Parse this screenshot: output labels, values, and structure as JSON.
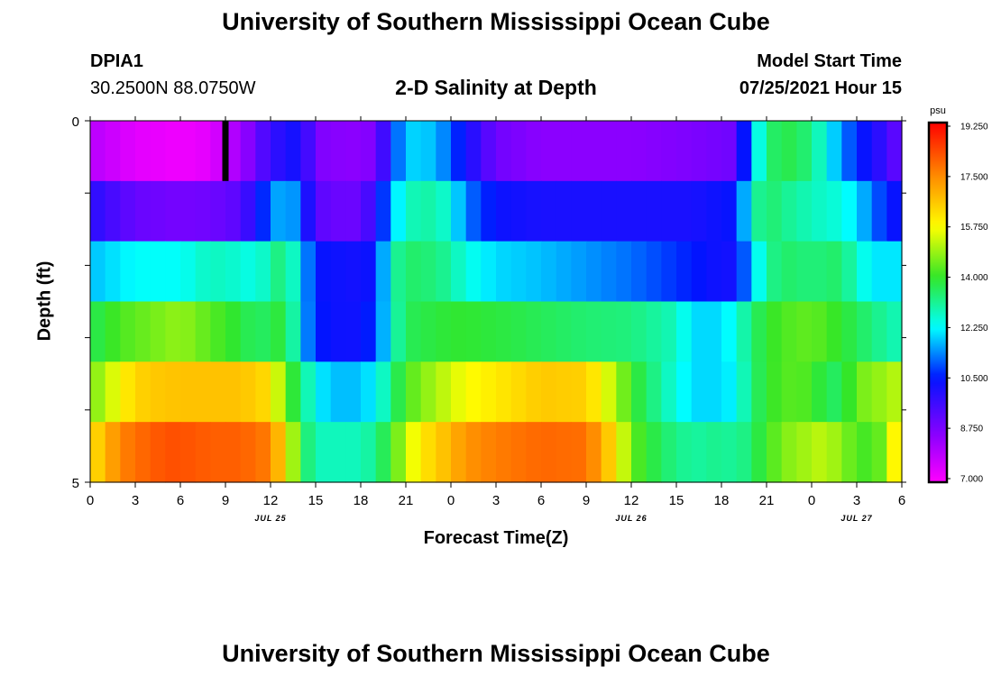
{
  "page": {
    "title": "University of Southern Mississippi Ocean Cube",
    "footer_title": "University of Southern Mississippi Ocean Cube",
    "station_id": "DPIA1",
    "coordinates": "30.2500N  88.0750W",
    "chart_title": "2-D Salinity at Depth",
    "model_start_label": "Model Start Time",
    "model_start_value": "07/25/2021 Hour 15"
  },
  "chart_data": {
    "type": "heatmap",
    "title": "2-D Salinity at Depth",
    "xlabel": "Forecast Time(Z)",
    "ylabel": "Depth (ft)",
    "x_tick_labels": [
      "0",
      "3",
      "6",
      "9",
      "12",
      "15",
      "18",
      "21",
      "0",
      "3",
      "6",
      "9",
      "12",
      "15",
      "18",
      "21",
      "0",
      "3",
      "6"
    ],
    "x_range_hours": [
      0,
      54
    ],
    "x_column_step_hours": 1,
    "date_labels": [
      {
        "text": "JUL 25",
        "hour": 12
      },
      {
        "text": "JUL 26",
        "hour": 36
      },
      {
        "text": "JUL 27",
        "hour": 51
      }
    ],
    "y_tick_labels": [
      "0",
      "5"
    ],
    "y_range": [
      0,
      5
    ],
    "y_minor_ticks": 5,
    "depth_layers": [
      "0-1",
      "1-2",
      "2-3",
      "3-4",
      "4-5"
    ],
    "grid": false,
    "colorbar": {
      "unit": "psu",
      "min": 7.0,
      "max": 19.25,
      "labels": [
        "19.250",
        "17.500",
        "15.750",
        "14.000",
        "12.250",
        "10.500",
        "8.750",
        "7.000"
      ]
    },
    "current_time_marker_hour": 9,
    "layer_key_values": [
      {
        "layer": 1,
        "hours": [
          0,
          3,
          6,
          8,
          10,
          11,
          12,
          14,
          15,
          17,
          18,
          19,
          20,
          21,
          23,
          24,
          25,
          27,
          30,
          33,
          36,
          40,
          43,
          43.5,
          44,
          45,
          46,
          48,
          49,
          50,
          51,
          52,
          53,
          54
        ],
        "values": [
          8.0,
          7.4,
          7.2,
          7.4,
          8.3,
          9.0,
          9.8,
          10.4,
          8.8,
          8.6,
          8.6,
          8.8,
          10.5,
          12.0,
          11.8,
          11.0,
          10.3,
          9.0,
          8.6,
          8.6,
          8.6,
          8.8,
          9.0,
          10.5,
          11.8,
          13.2,
          13.8,
          13.3,
          12.3,
          11.5,
          10.6,
          10.3,
          9.6,
          9.0
        ]
      },
      {
        "layer": 2,
        "hours": [
          0,
          3,
          6,
          8,
          10,
          11,
          12,
          13,
          14,
          15,
          17,
          18,
          19,
          20,
          21,
          23,
          24,
          25,
          27,
          30,
          33,
          36,
          40,
          43,
          44,
          45,
          46,
          48,
          50,
          51,
          52,
          53,
          54
        ],
        "values": [
          10.0,
          9.1,
          8.9,
          9.0,
          9.3,
          10.2,
          11.2,
          12.0,
          11.0,
          9.3,
          9.0,
          9.1,
          10.0,
          11.6,
          12.8,
          13.0,
          12.4,
          11.3,
          10.4,
          10.2,
          10.2,
          10.2,
          10.2,
          10.5,
          12.8,
          13.5,
          13.2,
          12.8,
          12.5,
          12.0,
          11.3,
          10.6,
          10.3
        ]
      },
      {
        "layer": 3,
        "hours": [
          0,
          3,
          6,
          8,
          10,
          11,
          12,
          13,
          14,
          15,
          17,
          18,
          19,
          20,
          21,
          23,
          24,
          25,
          27,
          30,
          33,
          36,
          40,
          42,
          43,
          44,
          45,
          46,
          48,
          50,
          51,
          52,
          53,
          54
        ],
        "values": [
          11.8,
          12.3,
          12.3,
          12.8,
          12.6,
          12.4,
          13.0,
          13.5,
          12.0,
          10.5,
          10.3,
          10.3,
          10.5,
          12.8,
          13.5,
          13.3,
          13.0,
          12.5,
          12.0,
          11.8,
          11.5,
          11.2,
          10.6,
          10.3,
          10.3,
          11.8,
          13.0,
          13.5,
          13.3,
          13.5,
          12.6,
          12.2,
          12.0,
          12.2
        ]
      },
      {
        "layer": 4,
        "hours": [
          0,
          2,
          4,
          6,
          8,
          10,
          11,
          12,
          13,
          14,
          15,
          17,
          18,
          19,
          20,
          21,
          23,
          24,
          25,
          27,
          30,
          33,
          36,
          39,
          40,
          42,
          43,
          44,
          45,
          46,
          48,
          50,
          51,
          52,
          53,
          54
        ],
        "values": [
          13.6,
          14.2,
          14.5,
          14.8,
          14.3,
          13.8,
          13.5,
          13.6,
          14.0,
          12.0,
          10.6,
          10.3,
          10.4,
          10.8,
          12.6,
          13.6,
          13.8,
          13.9,
          13.9,
          13.8,
          13.6,
          13.4,
          13.3,
          12.8,
          12.0,
          12.0,
          12.5,
          13.4,
          13.9,
          14.2,
          14.4,
          13.9,
          13.6,
          13.3,
          13.0,
          12.8
        ]
      },
      {
        "layer": 5,
        "hours": [
          0,
          1,
          2,
          3,
          4,
          6,
          8,
          10,
          12,
          13,
          14,
          15,
          16,
          18,
          19,
          20,
          21,
          23,
          24,
          25,
          27,
          30,
          33,
          34,
          35,
          36,
          38,
          40,
          42,
          43,
          44,
          46,
          48,
          49,
          50,
          51,
          52,
          53,
          54
        ],
        "values": [
          14.6,
          15.0,
          15.8,
          16.3,
          16.5,
          16.6,
          16.6,
          16.6,
          16.2,
          14.3,
          13.4,
          12.3,
          11.8,
          11.8,
          12.3,
          13.2,
          14.2,
          15.0,
          15.3,
          15.7,
          16.0,
          16.5,
          16.4,
          15.7,
          15.0,
          14.0,
          13.0,
          12.0,
          12.0,
          12.3,
          13.4,
          14.3,
          14.2,
          13.5,
          13.6,
          14.4,
          14.8,
          14.8,
          15.3
        ]
      },
      {
        "layer": 6,
        "hours": [
          0,
          1,
          2,
          3,
          4,
          5,
          6,
          8,
          10,
          12,
          13,
          14,
          15,
          16,
          18,
          19,
          20,
          21,
          22,
          24,
          25,
          27,
          30,
          33,
          34,
          35,
          36,
          38,
          40,
          42,
          43,
          44,
          46,
          48,
          49,
          50,
          51,
          52,
          53,
          54
        ],
        "values": [
          16.0,
          16.8,
          17.5,
          17.8,
          18.0,
          18.2,
          18.2,
          18.0,
          18.0,
          17.6,
          16.0,
          13.8,
          12.8,
          12.8,
          12.8,
          13.2,
          14.0,
          15.2,
          16.0,
          16.8,
          17.3,
          17.6,
          17.9,
          17.8,
          17.0,
          16.0,
          14.4,
          13.5,
          13.0,
          13.2,
          13.0,
          13.5,
          14.6,
          15.0,
          15.2,
          14.6,
          14.3,
          14.0,
          14.8,
          16.8
        ]
      }
    ]
  }
}
